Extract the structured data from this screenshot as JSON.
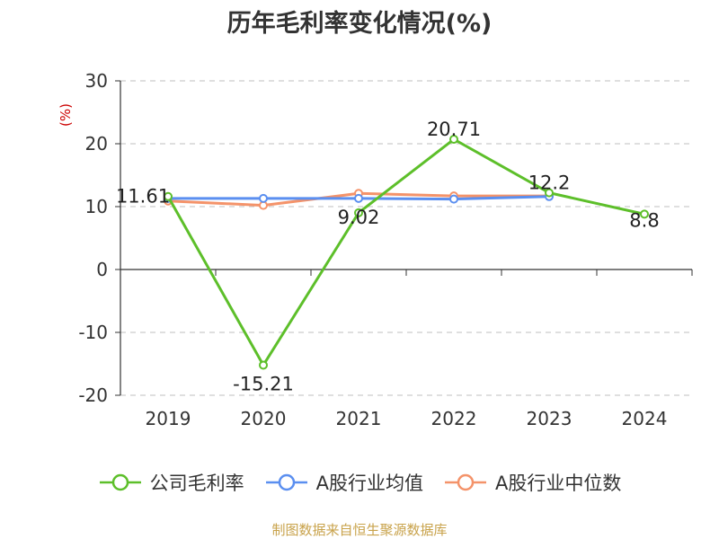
{
  "title": "历年毛利率变化情况(%)",
  "source_note": "制图数据来自恒生聚源数据库",
  "chart_data": {
    "type": "line",
    "title": "历年毛利率变化情况(%)",
    "ylabel": "(%)",
    "xlabel": "",
    "categories": [
      "2019",
      "2020",
      "2021",
      "2022",
      "2023",
      "2024"
    ],
    "ylim": [
      -20,
      30
    ],
    "yticks": [
      30,
      20,
      10,
      0,
      -10,
      -20
    ],
    "grid": true,
    "legend_position": "bottom",
    "series": [
      {
        "name": "公司毛利率",
        "color": "#5dbf2a",
        "values": [
          11.61,
          -15.21,
          9.02,
          20.71,
          12.2,
          8.8
        ],
        "labels": [
          "11.61",
          "-15.21",
          "9.02",
          "20.71",
          "12.2",
          "8.8"
        ]
      },
      {
        "name": "A股行业均值",
        "color": "#5b8ff0",
        "values": [
          11.3,
          11.3,
          11.3,
          11.2,
          11.6,
          null
        ]
      },
      {
        "name": "A股行业中位数",
        "color": "#f4936a",
        "values": [
          10.9,
          10.2,
          12.1,
          11.7,
          11.7,
          null
        ]
      }
    ]
  }
}
